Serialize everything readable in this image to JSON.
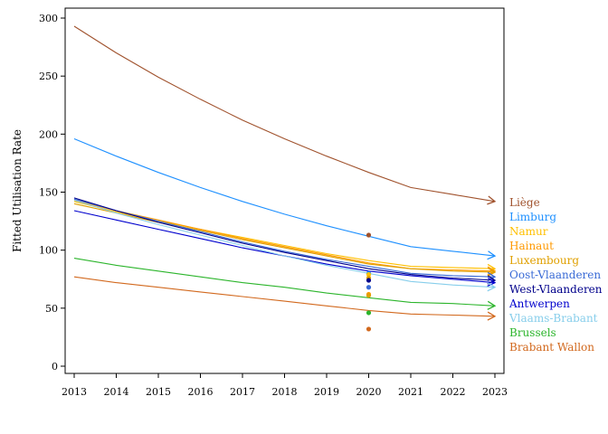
{
  "chart_data": {
    "type": "line",
    "title": "",
    "xlabel": "",
    "ylabel": "Fitted Utilisation Rate",
    "xlim": [
      2013,
      2023
    ],
    "ylim": [
      0,
      300
    ],
    "x_ticks": [
      2013,
      2014,
      2015,
      2016,
      2017,
      2018,
      2019,
      2020,
      2021,
      2022,
      2023
    ],
    "y_ticks": [
      0,
      50,
      100,
      150,
      200,
      250,
      300
    ],
    "grid": false,
    "legend_position": "right",
    "x": [
      2013,
      2014,
      2015,
      2016,
      2017,
      2018,
      2019,
      2020,
      2021,
      2022,
      2023
    ],
    "series": [
      {
        "name": "Liège",
        "color": "#a0522d",
        "values": [
          293,
          270,
          249,
          230,
          212,
          196,
          181,
          167,
          154,
          148,
          142
        ]
      },
      {
        "name": "Limburg",
        "color": "#1e90ff",
        "values": [
          196,
          181,
          167,
          154,
          142,
          131,
          121,
          112,
          103,
          99,
          95
        ]
      },
      {
        "name": "Namur",
        "color": "#ffc000",
        "values": [
          142,
          133,
          125,
          118,
          111,
          104,
          97,
          91,
          86,
          85,
          84
        ]
      },
      {
        "name": "Hainaut",
        "color": "#ff9900",
        "values": [
          143,
          134,
          126,
          118,
          110,
          103,
          96,
          89,
          84,
          83,
          82
        ]
      },
      {
        "name": "Luxembourg",
        "color": "#e0a000",
        "values": [
          140,
          132,
          124,
          117,
          109,
          102,
          95,
          88,
          84,
          82,
          81
        ]
      },
      {
        "name": "Oost-Vlaanderen",
        "color": "#3a6bd6",
        "values": [
          144,
          134,
          125,
          116,
          107,
          99,
          92,
          86,
          80,
          78,
          77
        ]
      },
      {
        "name": "West-Vlaanderen",
        "color": "#00008b",
        "values": [
          145,
          134,
          124,
          115,
          106,
          98,
          91,
          84,
          79,
          76,
          74
        ]
      },
      {
        "name": "Antwerpen",
        "color": "#0000cd",
        "values": [
          134,
          126,
          118,
          110,
          102,
          95,
          88,
          82,
          78,
          75,
          72
        ]
      },
      {
        "name": "Vlaams-Brabant",
        "color": "#87ceeb",
        "values": [
          143,
          132,
          122,
          113,
          104,
          95,
          87,
          80,
          73,
          70,
          68
        ]
      },
      {
        "name": "Brussels",
        "color": "#2cb52c",
        "values": [
          93,
          87,
          82,
          77,
          72,
          68,
          63,
          59,
          55,
          54,
          52
        ]
      },
      {
        "name": "Brabant Wallon",
        "color": "#d2691e",
        "values": [
          77,
          72,
          68,
          64,
          60,
          56,
          52,
          48,
          45,
          44,
          43
        ]
      }
    ],
    "points_2020": [
      {
        "series": "Liège",
        "y": 113
      },
      {
        "series": "Limburg",
        "y": 80
      },
      {
        "series": "Namur",
        "y": 79
      },
      {
        "series": "Luxembourg",
        "y": 76
      },
      {
        "series": "West-Vlaanderen",
        "y": 74
      },
      {
        "series": "Oost-Vlaanderen",
        "y": 68
      },
      {
        "series": "Hainaut",
        "y": 62
      },
      {
        "series": "Luxembourg",
        "y": 61
      },
      {
        "series": "Brussels",
        "y": 46
      },
      {
        "series": "Brabant Wallon",
        "y": 32
      }
    ]
  }
}
